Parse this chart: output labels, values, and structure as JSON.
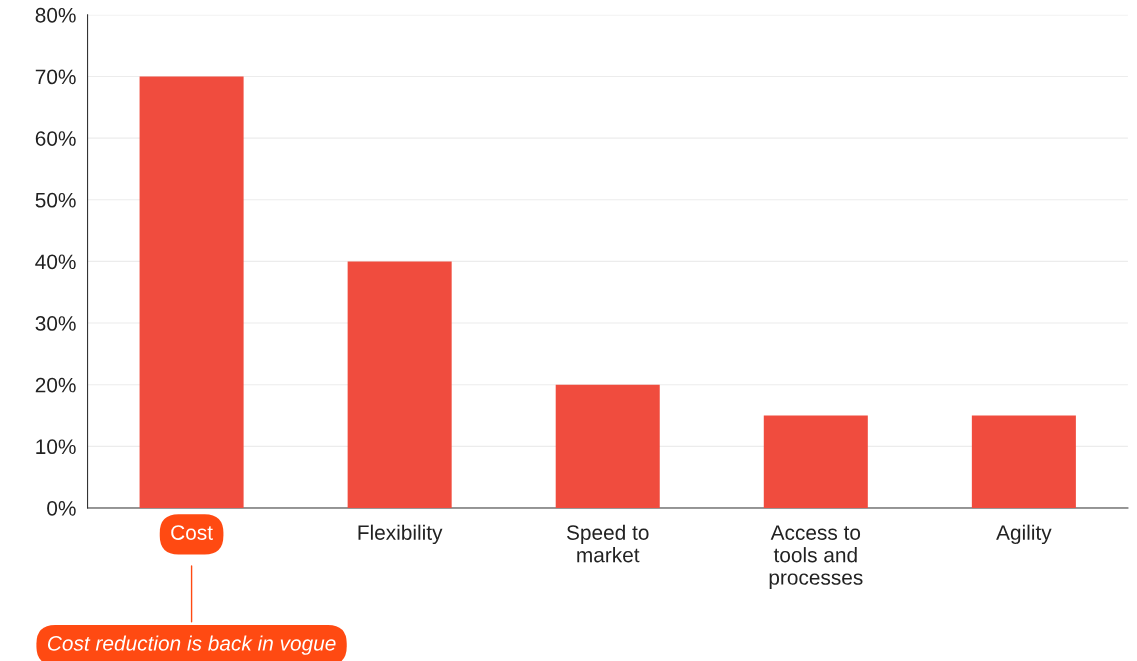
{
  "chart_data": {
    "type": "bar",
    "categories": [
      "Cost",
      "Flexibility",
      "Speed to\nmarket",
      "Access to\ntools and\nprocesses",
      "Agility"
    ],
    "values": [
      70,
      40,
      20,
      15,
      15
    ],
    "color": "#f04c3e",
    "ylim": [
      0,
      80
    ],
    "yticks": [
      {
        "value": 0,
        "label": "0%"
      },
      {
        "value": 10,
        "label": "10%"
      },
      {
        "value": 20,
        "label": "20%"
      },
      {
        "value": 30,
        "label": "30%"
      },
      {
        "value": 40,
        "label": "40%"
      },
      {
        "value": 50,
        "label": "50%"
      },
      {
        "value": 60,
        "label": "60%"
      },
      {
        "value": 70,
        "label": "70%"
      },
      {
        "value": 80,
        "label": "80%"
      }
    ],
    "grid": "y",
    "annotations": [
      {
        "text": "Cost reduction is back in vogue",
        "x": "Cost"
      }
    ]
  }
}
